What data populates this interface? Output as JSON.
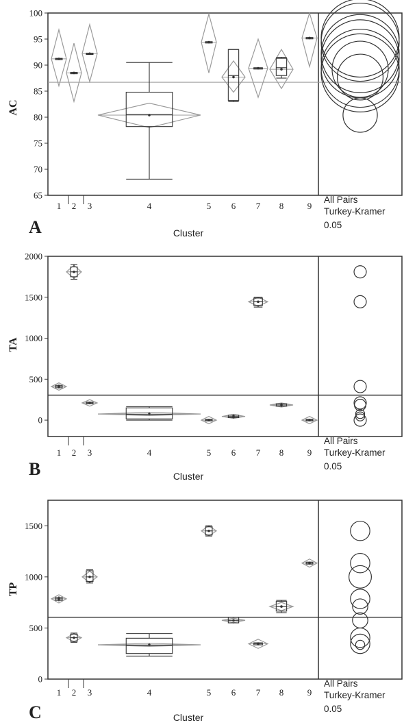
{
  "figure": {
    "side_text": [
      "All Pairs",
      "Turkey-Kramer",
      "0.05"
    ]
  },
  "chart_data": [
    {
      "type": "box",
      "panel_label": "A",
      "ylabel": "AC",
      "xlabel": "Cluster",
      "ylim": [
        65,
        100
      ],
      "yticks": [
        65,
        70,
        75,
        80,
        85,
        90,
        95,
        100
      ],
      "grand_mean": 86.7,
      "groups": [
        {
          "label": "1",
          "mean": 91.2,
          "ci": [
            86.0,
            96.8
          ],
          "q1": 91.1,
          "median": 91.2,
          "q3": 91.3,
          "min": 91.0,
          "max": 91.4
        },
        {
          "label": "2",
          "mean": 88.5,
          "ci": [
            83.0,
            94.2
          ],
          "q1": 88.4,
          "median": 88.5,
          "q3": 88.6,
          "min": 88.3,
          "max": 88.7
        },
        {
          "label": "3",
          "mean": 92.2,
          "ci": [
            86.8,
            97.8
          ],
          "q1": 92.1,
          "median": 92.2,
          "q3": 92.3,
          "min": 92.0,
          "max": 92.4
        },
        {
          "label": "4",
          "mean": 80.4,
          "ci": [
            78.0,
            82.7
          ],
          "q1": 78.2,
          "median": 80.5,
          "q3": 84.8,
          "min": 68.1,
          "max": 90.5
        },
        {
          "label": "5",
          "mean": 94.4,
          "ci": [
            88.5,
            99.8
          ],
          "q1": 94.3,
          "median": 94.4,
          "q3": 94.5,
          "min": 94.2,
          "max": 94.6
        },
        {
          "label": "6",
          "mean": 87.7,
          "ci": [
            84.8,
            90.8
          ],
          "q1": 83.2,
          "median": 88.0,
          "q3": 93.0,
          "min": 83.0,
          "max": 93.0
        },
        {
          "label": "7",
          "mean": 89.4,
          "ci": [
            83.8,
            95.0
          ],
          "q1": 89.3,
          "median": 89.4,
          "q3": 89.5,
          "min": 89.2,
          "max": 89.6
        },
        {
          "label": "8",
          "mean": 89.2,
          "ci": [
            85.5,
            93.0
          ],
          "q1": 88.0,
          "median": 89.5,
          "q3": 91.3,
          "min": 87.5,
          "max": 91.5
        },
        {
          "label": "9",
          "mean": 95.2,
          "ci": [
            89.7,
            100.0
          ],
          "q1": 95.1,
          "median": 95.2,
          "q3": 95.3,
          "min": 95.0,
          "max": 95.4
        }
      ],
      "comparison_circles": [
        {
          "center": 91.2,
          "radius": 7.5
        },
        {
          "center": 88.5,
          "radius": 7.5
        },
        {
          "center": 92.2,
          "radius": 7.5
        },
        {
          "center": 80.4,
          "radius": 3.3
        },
        {
          "center": 94.4,
          "radius": 7.5
        },
        {
          "center": 87.7,
          "radius": 4.4
        },
        {
          "center": 89.4,
          "radius": 7.5
        },
        {
          "center": 89.2,
          "radius": 5.4
        },
        {
          "center": 95.2,
          "radius": 7.5
        }
      ]
    },
    {
      "type": "box",
      "panel_label": "B",
      "ylabel": "TA",
      "xlabel": "Cluster",
      "ylim": [
        -200,
        2000
      ],
      "yticks": [
        0,
        500,
        1000,
        1500,
        2000
      ],
      "grand_mean": 305,
      "groups": [
        {
          "label": "1",
          "mean": 410,
          "ci": [
            365,
            455
          ],
          "q1": 395,
          "median": 410,
          "q3": 425,
          "min": 385,
          "max": 435
        },
        {
          "label": "2",
          "mean": 1810,
          "ci": [
            1730,
            1890
          ],
          "q1": 1750,
          "median": 1810,
          "q3": 1870,
          "min": 1720,
          "max": 1900
        },
        {
          "label": "3",
          "mean": 210,
          "ci": [
            170,
            250
          ],
          "q1": 200,
          "median": 210,
          "q3": 220,
          "min": 195,
          "max": 225
        },
        {
          "label": "4",
          "mean": 75,
          "ci": [
            55,
            95
          ],
          "q1": 15,
          "median": 70,
          "q3": 150,
          "min": 0,
          "max": 165
        },
        {
          "label": "5",
          "mean": 0,
          "ci": [
            -45,
            45
          ],
          "q1": -10,
          "median": 0,
          "q3": 10,
          "min": -15,
          "max": 15
        },
        {
          "label": "6",
          "mean": 45,
          "ci": [
            20,
            70
          ],
          "q1": 30,
          "median": 45,
          "q3": 60,
          "min": 20,
          "max": 70
        },
        {
          "label": "7",
          "mean": 1445,
          "ci": [
            1390,
            1500
          ],
          "q1": 1400,
          "median": 1445,
          "q3": 1490,
          "min": 1380,
          "max": 1500
        },
        {
          "label": "8",
          "mean": 185,
          "ci": [
            160,
            210
          ],
          "q1": 170,
          "median": 185,
          "q3": 200,
          "min": 160,
          "max": 210
        },
        {
          "label": "9",
          "mean": 0,
          "ci": [
            -45,
            45
          ],
          "q1": -10,
          "median": 0,
          "q3": 10,
          "min": -15,
          "max": 15
        }
      ],
      "comparison_circles": [
        {
          "center": 1810,
          "radius": 75
        },
        {
          "center": 1445,
          "radius": 75
        },
        {
          "center": 410,
          "radius": 75
        },
        {
          "center": 210,
          "radius": 75
        },
        {
          "center": 185,
          "radius": 70
        },
        {
          "center": 75,
          "radius": 55
        },
        {
          "center": 45,
          "radius": 55
        },
        {
          "center": 0,
          "radius": 75
        }
      ]
    },
    {
      "type": "box",
      "panel_label": "C",
      "ylabel": "TP",
      "xlabel": "Cluster",
      "ylim": [
        0,
        1750
      ],
      "yticks": [
        0,
        500,
        1000,
        1500
      ],
      "grand_mean": 605,
      "groups": [
        {
          "label": "1",
          "mean": 785,
          "ci": [
            745,
            825
          ],
          "q1": 770,
          "median": 785,
          "q3": 800,
          "min": 760,
          "max": 810
        },
        {
          "label": "2",
          "mean": 405,
          "ci": [
            365,
            445
          ],
          "q1": 370,
          "median": 405,
          "q3": 440,
          "min": 360,
          "max": 450
        },
        {
          "label": "3",
          "mean": 1000,
          "ci": [
            945,
            1055
          ],
          "q1": 955,
          "median": 1000,
          "q3": 1060,
          "min": 940,
          "max": 1070
        },
        {
          "label": "4",
          "mean": 335,
          "ci": [
            320,
            350
          ],
          "q1": 250,
          "median": 330,
          "q3": 400,
          "min": 225,
          "max": 445
        },
        {
          "label": "5",
          "mean": 1450,
          "ci": [
            1400,
            1500
          ],
          "q1": 1410,
          "median": 1450,
          "q3": 1490,
          "min": 1400,
          "max": 1500
        },
        {
          "label": "6",
          "mean": 575,
          "ci": [
            555,
            595
          ],
          "q1": 550,
          "median": 575,
          "q3": 605,
          "min": 545,
          "max": 610
        },
        {
          "label": "7",
          "mean": 345,
          "ci": [
            300,
            390
          ],
          "q1": 335,
          "median": 345,
          "q3": 355,
          "min": 330,
          "max": 360
        },
        {
          "label": "8",
          "mean": 710,
          "ci": [
            670,
            750
          ],
          "q1": 665,
          "median": 710,
          "q3": 760,
          "min": 650,
          "max": 770
        },
        {
          "label": "9",
          "mean": 1135,
          "ci": [
            1095,
            1175
          ],
          "q1": 1125,
          "median": 1135,
          "q3": 1145,
          "min": 1120,
          "max": 1150
        }
      ],
      "comparison_circles": [
        {
          "center": 1450,
          "radius": 95
        },
        {
          "center": 1135,
          "radius": 95
        },
        {
          "center": 1000,
          "radius": 110
        },
        {
          "center": 785,
          "radius": 95
        },
        {
          "center": 710,
          "radius": 75
        },
        {
          "center": 575,
          "radius": 75
        },
        {
          "center": 405,
          "radius": 95
        },
        {
          "center": 345,
          "radius": 95
        },
        {
          "center": 335,
          "radius": 45
        }
      ]
    }
  ]
}
